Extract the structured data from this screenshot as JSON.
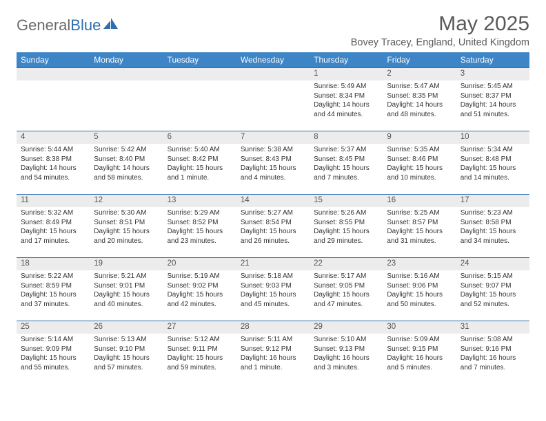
{
  "brand": {
    "part1": "General",
    "part2": "Blue"
  },
  "title": "May 2025",
  "location": "Bovey Tracey, England, United Kingdom",
  "colors": {
    "header_bg": "#3d85c6",
    "header_text": "#ffffff",
    "row_border": "#2f6fb0",
    "daynum_bg": "#ececec",
    "text": "#333333",
    "title_text": "#5a5a5a",
    "logo_gray": "#6b6b6b",
    "logo_blue": "#2f6fb0"
  },
  "day_headers": [
    "Sunday",
    "Monday",
    "Tuesday",
    "Wednesday",
    "Thursday",
    "Friday",
    "Saturday"
  ],
  "weeks": [
    [
      {
        "n": "",
        "lines": []
      },
      {
        "n": "",
        "lines": []
      },
      {
        "n": "",
        "lines": []
      },
      {
        "n": "",
        "lines": []
      },
      {
        "n": "1",
        "lines": [
          "Sunrise: 5:49 AM",
          "Sunset: 8:34 PM",
          "Daylight: 14 hours and 44 minutes."
        ]
      },
      {
        "n": "2",
        "lines": [
          "Sunrise: 5:47 AM",
          "Sunset: 8:35 PM",
          "Daylight: 14 hours and 48 minutes."
        ]
      },
      {
        "n": "3",
        "lines": [
          "Sunrise: 5:45 AM",
          "Sunset: 8:37 PM",
          "Daylight: 14 hours and 51 minutes."
        ]
      }
    ],
    [
      {
        "n": "4",
        "lines": [
          "Sunrise: 5:44 AM",
          "Sunset: 8:38 PM",
          "Daylight: 14 hours and 54 minutes."
        ]
      },
      {
        "n": "5",
        "lines": [
          "Sunrise: 5:42 AM",
          "Sunset: 8:40 PM",
          "Daylight: 14 hours and 58 minutes."
        ]
      },
      {
        "n": "6",
        "lines": [
          "Sunrise: 5:40 AM",
          "Sunset: 8:42 PM",
          "Daylight: 15 hours and 1 minute."
        ]
      },
      {
        "n": "7",
        "lines": [
          "Sunrise: 5:38 AM",
          "Sunset: 8:43 PM",
          "Daylight: 15 hours and 4 minutes."
        ]
      },
      {
        "n": "8",
        "lines": [
          "Sunrise: 5:37 AM",
          "Sunset: 8:45 PM",
          "Daylight: 15 hours and 7 minutes."
        ]
      },
      {
        "n": "9",
        "lines": [
          "Sunrise: 5:35 AM",
          "Sunset: 8:46 PM",
          "Daylight: 15 hours and 10 minutes."
        ]
      },
      {
        "n": "10",
        "lines": [
          "Sunrise: 5:34 AM",
          "Sunset: 8:48 PM",
          "Daylight: 15 hours and 14 minutes."
        ]
      }
    ],
    [
      {
        "n": "11",
        "lines": [
          "Sunrise: 5:32 AM",
          "Sunset: 8:49 PM",
          "Daylight: 15 hours and 17 minutes."
        ]
      },
      {
        "n": "12",
        "lines": [
          "Sunrise: 5:30 AM",
          "Sunset: 8:51 PM",
          "Daylight: 15 hours and 20 minutes."
        ]
      },
      {
        "n": "13",
        "lines": [
          "Sunrise: 5:29 AM",
          "Sunset: 8:52 PM",
          "Daylight: 15 hours and 23 minutes."
        ]
      },
      {
        "n": "14",
        "lines": [
          "Sunrise: 5:27 AM",
          "Sunset: 8:54 PM",
          "Daylight: 15 hours and 26 minutes."
        ]
      },
      {
        "n": "15",
        "lines": [
          "Sunrise: 5:26 AM",
          "Sunset: 8:55 PM",
          "Daylight: 15 hours and 29 minutes."
        ]
      },
      {
        "n": "16",
        "lines": [
          "Sunrise: 5:25 AM",
          "Sunset: 8:57 PM",
          "Daylight: 15 hours and 31 minutes."
        ]
      },
      {
        "n": "17",
        "lines": [
          "Sunrise: 5:23 AM",
          "Sunset: 8:58 PM",
          "Daylight: 15 hours and 34 minutes."
        ]
      }
    ],
    [
      {
        "n": "18",
        "lines": [
          "Sunrise: 5:22 AM",
          "Sunset: 8:59 PM",
          "Daylight: 15 hours and 37 minutes."
        ]
      },
      {
        "n": "19",
        "lines": [
          "Sunrise: 5:21 AM",
          "Sunset: 9:01 PM",
          "Daylight: 15 hours and 40 minutes."
        ]
      },
      {
        "n": "20",
        "lines": [
          "Sunrise: 5:19 AM",
          "Sunset: 9:02 PM",
          "Daylight: 15 hours and 42 minutes."
        ]
      },
      {
        "n": "21",
        "lines": [
          "Sunrise: 5:18 AM",
          "Sunset: 9:03 PM",
          "Daylight: 15 hours and 45 minutes."
        ]
      },
      {
        "n": "22",
        "lines": [
          "Sunrise: 5:17 AM",
          "Sunset: 9:05 PM",
          "Daylight: 15 hours and 47 minutes."
        ]
      },
      {
        "n": "23",
        "lines": [
          "Sunrise: 5:16 AM",
          "Sunset: 9:06 PM",
          "Daylight: 15 hours and 50 minutes."
        ]
      },
      {
        "n": "24",
        "lines": [
          "Sunrise: 5:15 AM",
          "Sunset: 9:07 PM",
          "Daylight: 15 hours and 52 minutes."
        ]
      }
    ],
    [
      {
        "n": "25",
        "lines": [
          "Sunrise: 5:14 AM",
          "Sunset: 9:09 PM",
          "Daylight: 15 hours and 55 minutes."
        ]
      },
      {
        "n": "26",
        "lines": [
          "Sunrise: 5:13 AM",
          "Sunset: 9:10 PM",
          "Daylight: 15 hours and 57 minutes."
        ]
      },
      {
        "n": "27",
        "lines": [
          "Sunrise: 5:12 AM",
          "Sunset: 9:11 PM",
          "Daylight: 15 hours and 59 minutes."
        ]
      },
      {
        "n": "28",
        "lines": [
          "Sunrise: 5:11 AM",
          "Sunset: 9:12 PM",
          "Daylight: 16 hours and 1 minute."
        ]
      },
      {
        "n": "29",
        "lines": [
          "Sunrise: 5:10 AM",
          "Sunset: 9:13 PM",
          "Daylight: 16 hours and 3 minutes."
        ]
      },
      {
        "n": "30",
        "lines": [
          "Sunrise: 5:09 AM",
          "Sunset: 9:15 PM",
          "Daylight: 16 hours and 5 minutes."
        ]
      },
      {
        "n": "31",
        "lines": [
          "Sunrise: 5:08 AM",
          "Sunset: 9:16 PM",
          "Daylight: 16 hours and 7 minutes."
        ]
      }
    ]
  ]
}
